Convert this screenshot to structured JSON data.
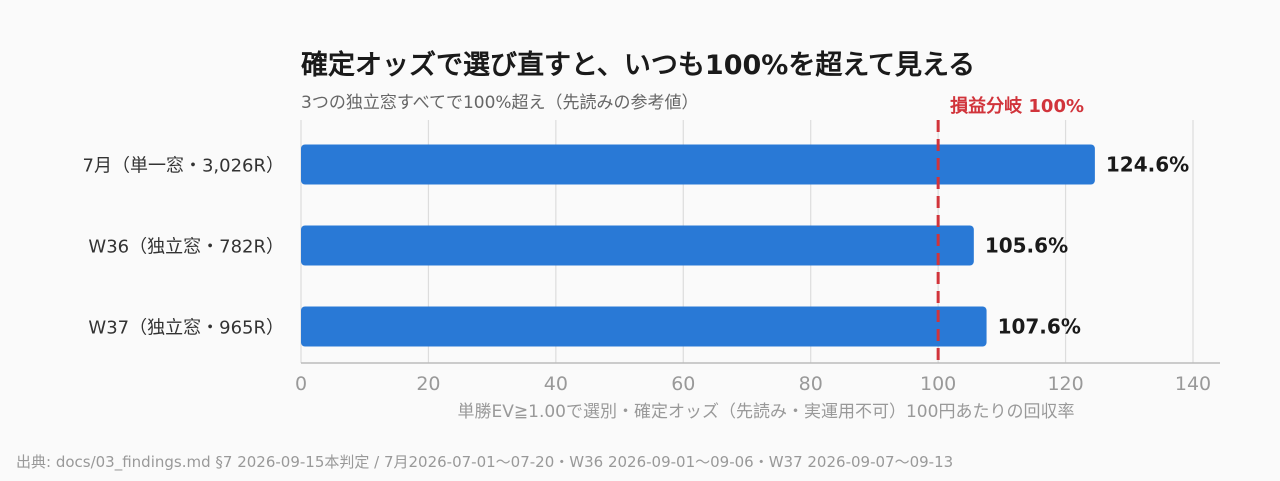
{
  "chart_data": {
    "type": "bar",
    "orientation": "horizontal",
    "title": "確定オッズで選び直すと、いつも100%を超えて見える",
    "subtitle": "3つの独立窓すべてで100%超え（先読みの参考値）",
    "categories": [
      "7月（単一窓・3,026R）",
      "W36（独立窓・782R）",
      "W37（独立窓・965R）"
    ],
    "values": [
      124.6,
      105.6,
      107.6
    ],
    "value_labels": [
      "124.6%",
      "105.6%",
      "107.6%"
    ],
    "xlabel": "単勝EV≧1.00で選別・確定オッズ（先読み・実運用不可）100円あたりの回収率",
    "ylabel": "",
    "xlim": [
      0,
      140
    ],
    "xticks": [
      0,
      20,
      40,
      60,
      80,
      100,
      120,
      140
    ],
    "grid": true,
    "reference_line": {
      "value": 100,
      "label": "損益分岐 100%",
      "color": "#d1343b",
      "style": "dashed"
    },
    "bar_color": "#2979d6"
  },
  "source_note": "出典: docs/03_findings.md §7 2026-09-15本判定 / 7月2026-07-01〜07-20・W36 2026-09-01〜09-06・W37 2026-09-07〜09-13"
}
